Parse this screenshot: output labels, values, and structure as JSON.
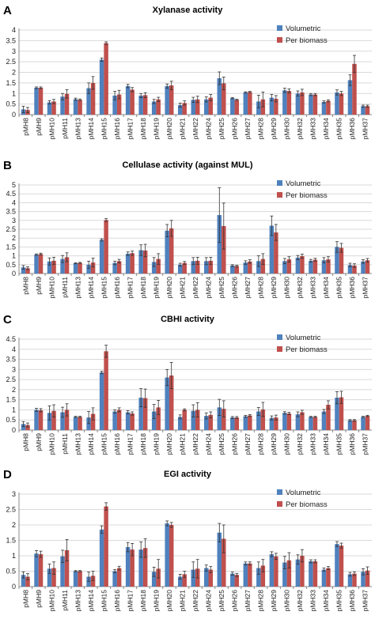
{
  "colors": {
    "volumetric": "#4f81bd",
    "per_biomass": "#c0504d",
    "error_bar": "#333333",
    "grid": "#d9d9d9"
  },
  "chart_data": [
    {
      "type": "bar",
      "panel_label": "A",
      "title": "Xylanase activity",
      "ylim": [
        0,
        4
      ],
      "yticks": [
        0,
        0.5,
        1,
        1.5,
        2,
        2.5,
        3,
        3.5,
        4
      ],
      "legend_position": "top-right",
      "categories": [
        "pMH8",
        "pMH9",
        "pMH10",
        "pMH11",
        "pMH13",
        "pMH14",
        "pMH15",
        "pMH16",
        "pMH17",
        "pMH18",
        "pMH19",
        "pMH20",
        "pMH21",
        "pMH22",
        "pMH24",
        "pMH25",
        "pMH26",
        "pMH27",
        "pMH28",
        "pMH29",
        "pMH30",
        "pMH32",
        "pMH33",
        "pMH34",
        "pMH35",
        "pMH36",
        "pMH37"
      ],
      "series": [
        {
          "name": "Volumetric",
          "values": [
            0.25,
            1.27,
            0.58,
            0.85,
            0.73,
            1.25,
            2.6,
            0.9,
            1.35,
            0.9,
            0.62,
            1.35,
            0.45,
            0.7,
            0.72,
            1.72,
            0.78,
            1.05,
            0.62,
            0.8,
            1.15,
            1.0,
            0.95,
            0.6,
            1.05,
            1.63,
            0.4
          ],
          "errors": [
            0.15,
            0.04,
            0.08,
            0.15,
            0.05,
            0.25,
            0.08,
            0.2,
            0.08,
            0.1,
            0.1,
            0.1,
            0.1,
            0.12,
            0.12,
            0.3,
            0.03,
            0.03,
            0.3,
            0.15,
            0.1,
            0.12,
            0.05,
            0.05,
            0.12,
            0.25,
            0.05
          ]
        },
        {
          "name": "Per biomass",
          "values": [
            0.22,
            1.27,
            0.62,
            0.98,
            0.7,
            1.5,
            3.38,
            0.95,
            1.18,
            0.92,
            0.72,
            1.38,
            0.55,
            0.72,
            0.8,
            1.48,
            0.7,
            1.07,
            0.72,
            0.75,
            1.12,
            1.05,
            0.95,
            0.65,
            1.0,
            2.4,
            0.4
          ],
          "errors": [
            0.12,
            0.04,
            0.1,
            0.2,
            0.04,
            0.3,
            0.06,
            0.2,
            0.1,
            0.12,
            0.1,
            0.2,
            0.1,
            0.15,
            0.15,
            0.3,
            0.03,
            0.03,
            0.35,
            0.15,
            0.1,
            0.15,
            0.05,
            0.05,
            0.1,
            0.4,
            0.05
          ]
        }
      ]
    },
    {
      "type": "bar",
      "panel_label": "B",
      "title": "Cellulase activity (against MUL)",
      "ylim": [
        0,
        5
      ],
      "yticks": [
        0,
        0.5,
        1,
        1.5,
        2,
        2.5,
        3,
        3.5,
        4,
        4.5,
        5
      ],
      "legend_position": "top-right",
      "categories": [
        "pMH8",
        "pMH9",
        "pMH10",
        "pMH11",
        "pMH13",
        "pMH14",
        "pMH15",
        "pMH16",
        "pMH17",
        "pMH18",
        "pMH19",
        "pMH20",
        "pMH21",
        "pMH22",
        "pMH24",
        "pMH25",
        "pMH26",
        "pMH27",
        "pMH28",
        "pMH29",
        "pMH30",
        "pMH32",
        "pMH33",
        "pMH34",
        "pMH35",
        "pMH36",
        "pMH37"
      ],
      "series": [
        {
          "name": "Volumetric",
          "values": [
            0.35,
            1.07,
            0.68,
            0.82,
            0.58,
            0.5,
            1.9,
            0.6,
            1.12,
            1.32,
            0.65,
            2.42,
            0.5,
            0.7,
            0.7,
            3.3,
            0.45,
            0.62,
            0.7,
            2.7,
            0.7,
            0.9,
            0.72,
            0.75,
            1.5,
            0.48,
            0.68
          ],
          "errors": [
            0.1,
            0.04,
            0.2,
            0.2,
            0.03,
            0.2,
            0.06,
            0.1,
            0.1,
            0.3,
            0.25,
            0.35,
            0.08,
            0.2,
            0.2,
            1.55,
            0.05,
            0.1,
            0.3,
            0.55,
            0.15,
            0.12,
            0.08,
            0.15,
            0.3,
            0.1,
            0.1
          ]
        },
        {
          "name": "Per biomass",
          "values": [
            0.3,
            1.1,
            0.72,
            0.92,
            0.6,
            0.62,
            3.02,
            0.7,
            1.15,
            1.3,
            0.82,
            2.55,
            0.6,
            0.72,
            0.72,
            2.68,
            0.42,
            0.68,
            0.82,
            2.32,
            0.8,
            0.98,
            0.78,
            0.8,
            1.45,
            0.45,
            0.75
          ],
          "errors": [
            0.08,
            0.05,
            0.2,
            0.25,
            0.03,
            0.25,
            0.08,
            0.1,
            0.12,
            0.35,
            0.3,
            0.45,
            0.08,
            0.2,
            0.2,
            1.3,
            0.05,
            0.1,
            0.3,
            0.45,
            0.15,
            0.12,
            0.08,
            0.15,
            0.25,
            0.1,
            0.1
          ]
        }
      ]
    },
    {
      "type": "bar",
      "panel_label": "C",
      "title": "CBHI activity",
      "ylim": [
        0,
        4.5
      ],
      "yticks": [
        0,
        0.5,
        1,
        1.5,
        2,
        2.5,
        3,
        3.5,
        4,
        4.5
      ],
      "legend_position": "top-right",
      "categories": [
        "pMH8",
        "pMH9",
        "pMH10",
        "pMH11",
        "pMH13",
        "pMH14",
        "pMH15",
        "pMH16",
        "pMH17",
        "pMH18",
        "pMH19",
        "pMH20",
        "pMH21",
        "pMH22",
        "pMH24",
        "pMH25",
        "pMH26",
        "pMH27",
        "pMH28",
        "pMH29",
        "pMH30",
        "pMH32",
        "pMH33",
        "pMH34",
        "pMH35",
        "pMH36",
        "pMH37"
      ],
      "series": [
        {
          "name": "Volumetric",
          "values": [
            0.3,
            1.0,
            0.85,
            0.88,
            0.65,
            0.62,
            2.85,
            0.92,
            0.88,
            1.6,
            0.92,
            2.6,
            0.65,
            0.95,
            0.7,
            1.12,
            0.62,
            0.68,
            0.92,
            0.6,
            0.85,
            0.78,
            0.65,
            0.92,
            1.6,
            0.48,
            0.65
          ],
          "errors": [
            0.12,
            0.08,
            0.35,
            0.25,
            0.03,
            0.3,
            0.06,
            0.08,
            0.08,
            0.45,
            0.35,
            0.4,
            0.1,
            0.3,
            0.15,
            0.4,
            0.05,
            0.05,
            0.2,
            0.1,
            0.06,
            0.12,
            0.03,
            0.1,
            0.3,
            0.04,
            0.03
          ]
        },
        {
          "name": "Per biomass",
          "values": [
            0.25,
            0.98,
            0.95,
            1.0,
            0.65,
            0.8,
            3.9,
            1.0,
            0.82,
            1.58,
            1.12,
            2.7,
            1.0,
            1.0,
            0.75,
            1.05,
            0.62,
            0.72,
            1.02,
            0.62,
            0.82,
            0.88,
            0.65,
            1.25,
            1.62,
            0.48,
            0.7
          ],
          "errors": [
            0.1,
            0.08,
            0.3,
            0.3,
            0.03,
            0.3,
            0.3,
            0.1,
            0.08,
            0.45,
            0.35,
            0.65,
            0.05,
            0.35,
            0.15,
            0.4,
            0.05,
            0.05,
            0.35,
            0.12,
            0.06,
            0.1,
            0.03,
            0.2,
            0.3,
            0.04,
            0.03
          ]
        }
      ]
    },
    {
      "type": "bar",
      "panel_label": "D",
      "title": "EGI activity",
      "ylim": [
        0,
        3
      ],
      "yticks": [
        0,
        0.5,
        1,
        1.5,
        2,
        2.5,
        3
      ],
      "legend_position": "top-right",
      "categories": [
        "pMH8",
        "pMH9",
        "pMH10",
        "pMH11",
        "pMH13",
        "pMH14",
        "pMH15",
        "pMH16",
        "pMH17",
        "pMH18",
        "pMH19",
        "pMH20",
        "pMH21",
        "pMH22",
        "pMH24",
        "pMH25",
        "pMH26",
        "pMH27",
        "pMH28",
        "pMH29",
        "pMH30",
        "pMH32",
        "pMH33",
        "pMH34",
        "pMH35",
        "pMH36",
        "pMH37"
      ],
      "series": [
        {
          "name": "Volumetric",
          "values": [
            0.38,
            1.07,
            0.58,
            0.98,
            0.5,
            0.32,
            1.85,
            0.5,
            1.28,
            1.2,
            0.48,
            2.05,
            0.32,
            0.55,
            0.6,
            1.75,
            0.42,
            0.75,
            0.6,
            1.05,
            0.78,
            0.88,
            0.82,
            0.55,
            1.38,
            0.4,
            0.48
          ],
          "errors": [
            0.1,
            0.1,
            0.15,
            0.2,
            0.02,
            0.15,
            0.12,
            0.05,
            0.15,
            0.25,
            0.15,
            0.08,
            0.08,
            0.25,
            0.1,
            0.3,
            0.05,
            0.05,
            0.2,
            0.08,
            0.2,
            0.15,
            0.05,
            0.05,
            0.08,
            0.06,
            0.1
          ]
        },
        {
          "name": "Per biomass",
          "values": [
            0.32,
            1.05,
            0.6,
            1.18,
            0.5,
            0.35,
            2.6,
            0.6,
            1.2,
            1.25,
            0.58,
            2.0,
            0.4,
            0.58,
            0.55,
            1.55,
            0.38,
            0.75,
            0.68,
            0.98,
            0.85,
            1.0,
            0.82,
            0.6,
            1.33,
            0.42,
            0.52
          ],
          "errors": [
            0.1,
            0.1,
            0.2,
            0.35,
            0.02,
            0.15,
            0.12,
            0.06,
            0.2,
            0.3,
            0.3,
            0.08,
            0.1,
            0.3,
            0.1,
            0.45,
            0.05,
            0.05,
            0.2,
            0.1,
            0.25,
            0.2,
            0.05,
            0.05,
            0.08,
            0.06,
            0.12
          ]
        }
      ]
    }
  ]
}
